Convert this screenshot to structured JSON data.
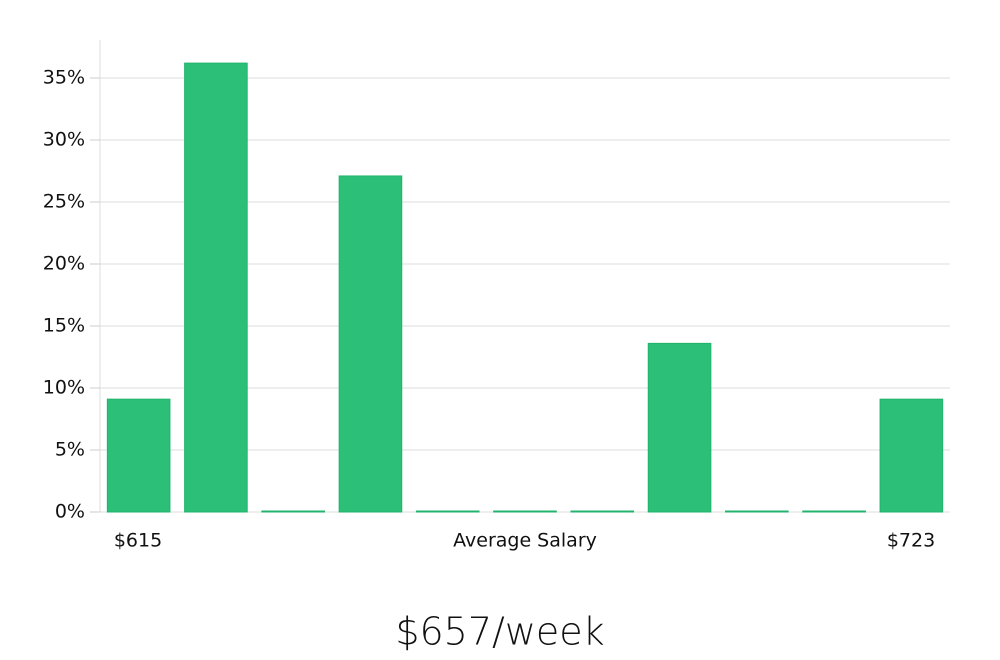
{
  "chart_data": {
    "type": "bar",
    "categories": [
      null,
      null,
      null,
      null,
      null,
      null,
      null,
      null,
      null,
      null,
      null
    ],
    "values": [
      9.1,
      36.2,
      0,
      27.1,
      0,
      0,
      0,
      13.6,
      0,
      0,
      9.1
    ],
    "color": "#2bbf77",
    "ylim": [
      0,
      38
    ],
    "yticks": [
      {
        "value": 0,
        "label": "0%"
      },
      {
        "value": 5,
        "label": "5%"
      },
      {
        "value": 10,
        "label": "10%"
      },
      {
        "value": 15,
        "label": "15%"
      },
      {
        "value": 20,
        "label": "20%"
      },
      {
        "value": 25,
        "label": "25%"
      },
      {
        "value": 30,
        "label": "30%"
      },
      {
        "value": 35,
        "label": "35%"
      }
    ],
    "grid": true,
    "x_min_label": "$615",
    "x_label": "Average Salary",
    "x_max_label": "$723",
    "annotation": "$657/week"
  }
}
